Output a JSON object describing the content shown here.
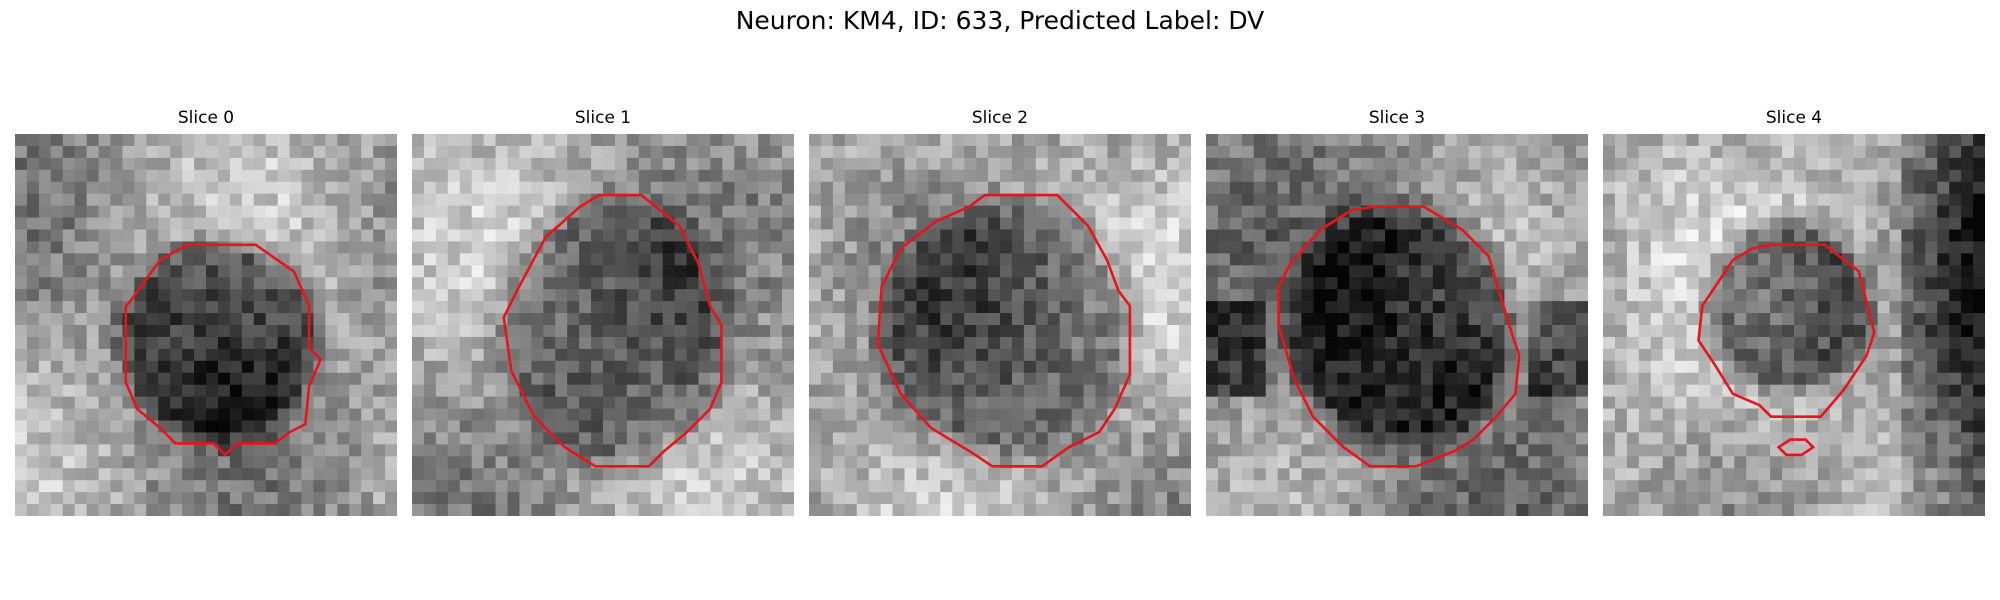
{
  "figure": {
    "title": "Neuron: KM4, ID: 633, Predicted Label: DV"
  },
  "panels": [
    {
      "title": "Slice 0",
      "seed": 11,
      "dark_level": 0.22,
      "bg_center": 0.62
    },
    {
      "title": "Slice 1",
      "seed": 29,
      "dark_level": 0.38,
      "bg_center": 0.64
    },
    {
      "title": "Slice 2",
      "seed": 47,
      "dark_level": 0.4,
      "bg_center": 0.66
    },
    {
      "title": "Slice 3",
      "seed": 73,
      "dark_level": 0.14,
      "bg_center": 0.55
    },
    {
      "title": "Slice 4",
      "seed": 91,
      "dark_level": 0.28,
      "bg_center": 0.7
    }
  ],
  "colors": {
    "contour": "#e8141b",
    "background": "#ffffff"
  }
}
